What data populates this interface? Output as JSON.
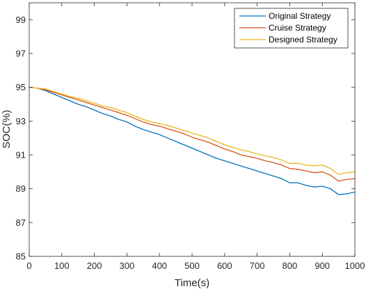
{
  "chart_data": {
    "type": "line",
    "xlabel": "Time(s)",
    "ylabel": "SOC(%)",
    "xlim": [
      0,
      1000
    ],
    "ylim": [
      85,
      100
    ],
    "xticks": [
      0,
      100,
      200,
      300,
      400,
      500,
      600,
      700,
      800,
      900,
      1000
    ],
    "yticks": [
      85,
      87,
      89,
      91,
      93,
      95,
      97,
      99
    ],
    "grid": false,
    "legend_position": "top-right",
    "x": [
      0,
      25,
      50,
      75,
      100,
      125,
      150,
      175,
      200,
      225,
      250,
      275,
      300,
      325,
      350,
      375,
      400,
      425,
      450,
      475,
      500,
      525,
      550,
      575,
      600,
      625,
      650,
      675,
      700,
      725,
      750,
      775,
      800,
      825,
      850,
      875,
      900,
      925,
      950,
      975,
      1000
    ],
    "series": [
      {
        "name": "Original Strategy",
        "color": "#0072BD",
        "values": [
          95.0,
          94.95,
          94.8,
          94.6,
          94.4,
          94.2,
          94.0,
          93.85,
          93.65,
          93.45,
          93.3,
          93.1,
          92.95,
          92.7,
          92.5,
          92.35,
          92.2,
          92.0,
          91.8,
          91.6,
          91.4,
          91.2,
          91.0,
          90.8,
          90.65,
          90.5,
          90.35,
          90.2,
          90.05,
          89.9,
          89.75,
          89.6,
          89.35,
          89.35,
          89.2,
          89.1,
          89.15,
          89.0,
          88.65,
          88.7,
          88.8
        ]
      },
      {
        "name": "Cruise Strategy",
        "color": "#D95319",
        "values": [
          95.0,
          94.95,
          94.85,
          94.7,
          94.55,
          94.4,
          94.25,
          94.1,
          93.95,
          93.8,
          93.65,
          93.5,
          93.35,
          93.15,
          92.95,
          92.8,
          92.7,
          92.55,
          92.4,
          92.25,
          92.05,
          91.9,
          91.75,
          91.55,
          91.35,
          91.2,
          91.0,
          90.9,
          90.8,
          90.65,
          90.55,
          90.4,
          90.2,
          90.15,
          90.05,
          89.95,
          90.0,
          89.8,
          89.45,
          89.55,
          89.6
        ]
      },
      {
        "name": "Designed Strategy",
        "color": "#EDB120",
        "values": [
          95.0,
          94.95,
          94.9,
          94.75,
          94.6,
          94.45,
          94.35,
          94.2,
          94.05,
          93.9,
          93.8,
          93.65,
          93.5,
          93.3,
          93.1,
          92.95,
          92.85,
          92.75,
          92.6,
          92.45,
          92.3,
          92.15,
          92.0,
          91.8,
          91.6,
          91.45,
          91.3,
          91.2,
          91.05,
          90.95,
          90.85,
          90.7,
          90.5,
          90.5,
          90.4,
          90.35,
          90.4,
          90.2,
          89.85,
          89.95,
          90.0
        ]
      }
    ]
  }
}
